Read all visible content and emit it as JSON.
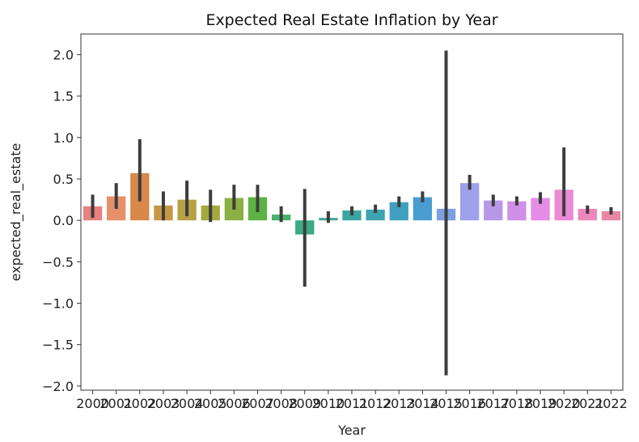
{
  "chart_data": {
    "type": "bar",
    "title": "Expected Real Estate Inflation by Year",
    "xlabel": "Year",
    "ylabel": "expected_real_estate",
    "ylim": [
      -2.05,
      2.25
    ],
    "yticks": [
      2.0,
      1.5,
      1.0,
      0.5,
      0.0,
      -0.5,
      -1.0,
      -1.5,
      -2.0
    ],
    "ytick_labels": [
      "2.0",
      "1.5",
      "1.0",
      "0.5",
      "0.0",
      "−0.5",
      "−1.0",
      "−1.5",
      "−2.0"
    ],
    "grid": false,
    "legend": "none",
    "categories": [
      "2000",
      "2001",
      "2002",
      "2003",
      "2004",
      "2005",
      "2006",
      "2007",
      "2008",
      "2009",
      "2010",
      "2011",
      "2012",
      "2013",
      "2014",
      "2015",
      "2016",
      "2017",
      "2018",
      "2019",
      "2020",
      "2021",
      "2022"
    ],
    "values": [
      0.17,
      0.29,
      0.57,
      0.18,
      0.25,
      0.18,
      0.27,
      0.28,
      0.07,
      -0.17,
      0.03,
      0.12,
      0.13,
      0.22,
      0.28,
      0.14,
      0.45,
      0.24,
      0.23,
      0.27,
      0.37,
      0.14,
      0.11
    ],
    "error_low": [
      0.03,
      0.14,
      0.23,
      0.0,
      0.05,
      -0.02,
      0.13,
      0.1,
      -0.02,
      -0.8,
      -0.03,
      0.06,
      0.09,
      0.16,
      0.22,
      -1.87,
      0.37,
      0.17,
      0.18,
      0.2,
      0.05,
      0.08,
      0.07
    ],
    "error_high": [
      0.31,
      0.45,
      0.98,
      0.35,
      0.48,
      0.37,
      0.43,
      0.43,
      0.17,
      0.38,
      0.11,
      0.17,
      0.19,
      0.29,
      0.35,
      2.05,
      0.55,
      0.31,
      0.29,
      0.34,
      0.88,
      0.18,
      0.16
    ],
    "colors": [
      "#e8817f",
      "#e59068",
      "#d7884a",
      "#c79844",
      "#b6a244",
      "#a2a93f",
      "#8bb043",
      "#5cb343",
      "#48b36c",
      "#3aa984",
      "#3aa796",
      "#3ca5a4",
      "#3da3b1",
      "#41a0c0",
      "#4a9dd1",
      "#7ca0e1",
      "#9fa0ea",
      "#b798e8",
      "#cf8ee8",
      "#e48ce6",
      "#ea89d4",
      "#ec87bb",
      "#ea87a3"
    ]
  }
}
